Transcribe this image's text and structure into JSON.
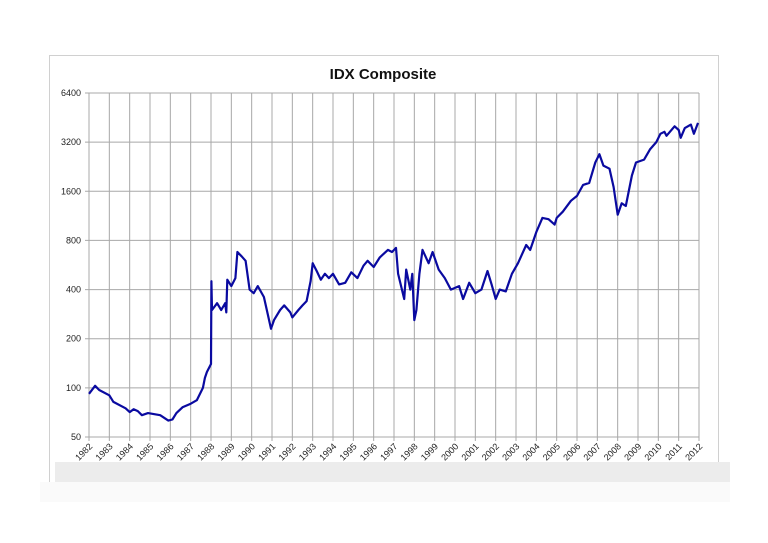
{
  "chart_data": {
    "type": "line",
    "title": "IDX Composite",
    "xlabel": "",
    "ylabel": "",
    "y_scale": "log2",
    "ylim": [
      50,
      6400
    ],
    "y_ticks": [
      50,
      100,
      200,
      400,
      800,
      1600,
      3200,
      6400
    ],
    "xlim": [
      1982,
      2012
    ],
    "x_ticks": [
      "1982",
      "1983",
      "1984",
      "1985",
      "1986",
      "1987",
      "1988",
      "1989",
      "1990",
      "1991",
      "1992",
      "1993",
      "1994",
      "1995",
      "1996",
      "1997",
      "1998",
      "1999",
      "2000",
      "2001",
      "2002",
      "2003",
      "2004",
      "2005",
      "2006",
      "2007",
      "2008",
      "2009",
      "2010",
      "2011",
      "2012"
    ],
    "grid": true,
    "line_color": "#0a0aa0",
    "series": [
      {
        "x": [
          1982.0,
          1982.3,
          1982.5,
          1983.0,
          1983.2,
          1983.8,
          1984.0,
          1984.2,
          1984.4,
          1984.6,
          1984.9,
          1985.5,
          1985.9,
          1986.1,
          1986.3,
          1986.6,
          1986.8,
          1987.0,
          1987.3,
          1987.6,
          1987.7,
          1987.8,
          1988.0,
          1988.02,
          1988.05,
          1988.3,
          1988.5,
          1988.7,
          1988.75,
          1988.8,
          1989.0,
          1989.2,
          1989.3,
          1989.5,
          1989.7,
          1989.9,
          1990.1,
          1990.3,
          1990.6,
          1990.8,
          1990.95,
          1991.1,
          1991.4,
          1991.6,
          1991.9,
          1992.0,
          1992.3,
          1992.5,
          1992.7,
          1992.9,
          1993.0,
          1993.2,
          1993.4,
          1993.6,
          1993.8,
          1994.0,
          1994.3,
          1994.6,
          1994.9,
          1995.2,
          1995.5,
          1995.7,
          1996.0,
          1996.3,
          1996.7,
          1996.9,
          1997.1,
          1997.2,
          1997.5,
          1997.6,
          1997.8,
          1997.9,
          1998.0,
          1998.1,
          1998.25,
          1998.4,
          1998.7,
          1998.9,
          1999.2,
          1999.5,
          1999.8,
          2000.2,
          2000.4,
          2000.7,
          2001.0,
          2001.3,
          2001.6,
          2001.8,
          2002.0,
          2002.2,
          2002.5,
          2002.8,
          2003.1,
          2003.5,
          2003.7,
          2004.0,
          2004.3,
          2004.6,
          2004.9,
          2005.0,
          2005.3,
          2005.7,
          2006.0,
          2006.3,
          2006.6,
          2006.9,
          2007.1,
          2007.3,
          2007.6,
          2007.8,
          2008.0,
          2008.2,
          2008.4,
          2008.7,
          2008.9,
          2009.3,
          2009.6,
          2009.9,
          2010.1,
          2010.3,
          2010.4,
          2010.8,
          2011.0,
          2011.1,
          2011.3,
          2011.6,
          2011.75,
          2011.95
        ],
        "y": [
          92,
          103,
          97,
          90,
          82,
          75,
          71,
          74,
          72,
          68,
          70,
          68,
          63,
          64,
          70,
          76,
          78,
          80,
          84,
          100,
          115,
          125,
          140,
          450,
          300,
          330,
          300,
          330,
          290,
          460,
          420,
          470,
          680,
          640,
          600,
          400,
          380,
          420,
          360,
          280,
          230,
          260,
          300,
          320,
          290,
          270,
          300,
          320,
          340,
          450,
          580,
          520,
          460,
          500,
          470,
          500,
          430,
          440,
          510,
          470,
          560,
          600,
          550,
          630,
          700,
          680,
          720,
          500,
          350,
          530,
          400,
          500,
          260,
          300,
          500,
          700,
          580,
          680,
          530,
          470,
          400,
          420,
          350,
          440,
          380,
          400,
          520,
          430,
          350,
          400,
          390,
          500,
          580,
          750,
          700,
          900,
          1100,
          1080,
          1000,
          1100,
          1200,
          1400,
          1500,
          1750,
          1800,
          2400,
          2700,
          2300,
          2200,
          1700,
          1150,
          1350,
          1300,
          2000,
          2400,
          2500,
          2900,
          3200,
          3600,
          3700,
          3500,
          4000,
          3800,
          3400,
          3900,
          4100,
          3600,
          4200
        ]
      }
    ]
  }
}
